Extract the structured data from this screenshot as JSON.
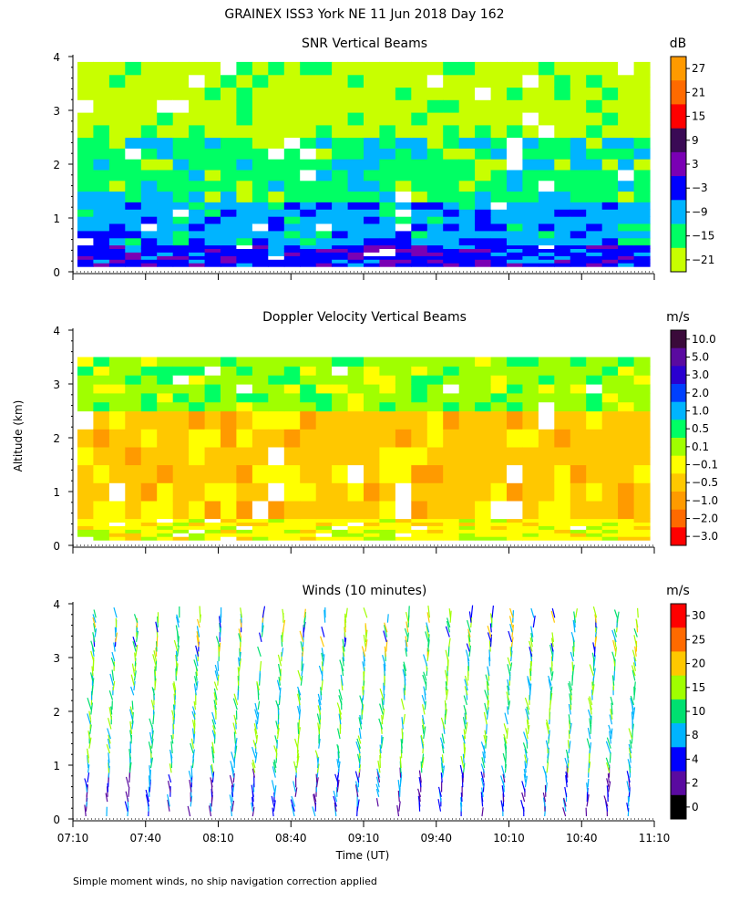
{
  "title": "GRAINEX ISS3 York NE  11 Jun 2018 Day 162",
  "ylabel": "Altitude (km)",
  "xlabel": "Time (UT)",
  "footnote": "Simple moment winds, no ship navigation correction applied",
  "chart_data": [
    {
      "type": "heatmap",
      "title": "SNR Vertical Beams",
      "unit": "dB",
      "x_ticks": [
        "07:10",
        "07:40",
        "08:10",
        "08:40",
        "09:10",
        "09:40",
        "10:10",
        "10:40",
        "11:10"
      ],
      "y_ticks": [
        "0",
        "1",
        "2",
        "3",
        "4"
      ],
      "ylim": [
        0,
        4
      ],
      "colorbar": {
        "labels": [
          "27",
          "21",
          "15",
          "9",
          "3",
          "−3",
          "−9",
          "−15",
          "−21"
        ],
        "colors": [
          "#ff9a00",
          "#ff6a00",
          "#ff0000",
          "#3a0a55",
          "#7a00b4",
          "#0000ff",
          "#00b4ff",
          "#00ff64",
          "#c8ff00"
        ]
      },
      "altitude_bands_km": [
        {
          "from": 0.1,
          "to": 0.5,
          "level": "-3"
        },
        {
          "from": 0.5,
          "to": 1.3,
          "level": "-9"
        },
        {
          "from": 1.3,
          "to": 2.5,
          "level": "-15"
        },
        {
          "from": 2.5,
          "to": 3.9,
          "level": "-21"
        }
      ]
    },
    {
      "type": "heatmap",
      "title": "Doppler Velocity Vertical Beams",
      "unit": "m/s",
      "x_ticks": [
        "07:10",
        "07:40",
        "08:10",
        "08:40",
        "09:10",
        "09:40",
        "10:10",
        "10:40",
        "11:10"
      ],
      "y_ticks": [
        "0",
        "1",
        "2",
        "3",
        "4"
      ],
      "ylim": [
        0,
        4
      ],
      "colorbar": {
        "labels": [
          "10.0",
          "5.0",
          "3.0",
          "2.0",
          "1.0",
          "0.5",
          "0.1",
          "−0.1",
          "−0.5",
          "−1.0",
          "−2.0",
          "−3.0"
        ],
        "colors": [
          "#3a0a3a",
          "#5a0aa0",
          "#2a00d0",
          "#0040ff",
          "#00b4ff",
          "#00ff64",
          "#a0ff00",
          "#ffff00",
          "#ffc800",
          "#ff9a00",
          "#ff6a00",
          "#ff0000"
        ]
      },
      "altitude_bands_km": [
        {
          "from": 0.1,
          "to": 0.5,
          "level": "-0.1"
        },
        {
          "from": 0.5,
          "to": 2.5,
          "level": "-0.5"
        },
        {
          "from": 2.5,
          "to": 3.5,
          "level": "0.1"
        }
      ]
    },
    {
      "type": "barbs",
      "title": "Winds (10 minutes)",
      "unit": "m/s",
      "x_ticks": [
        "07:10",
        "07:40",
        "08:10",
        "08:40",
        "09:10",
        "09:40",
        "10:10",
        "10:40",
        "11:10"
      ],
      "y_ticks": [
        "0",
        "1",
        "2",
        "3",
        "4"
      ],
      "ylim": [
        0,
        4
      ],
      "colorbar": {
        "labels": [
          "30",
          "25",
          "20",
          "15",
          "10",
          "8",
          "4",
          "2",
          "0"
        ],
        "colors": [
          "#ff0000",
          "#ff6a00",
          "#ffc800",
          "#a0ff00",
          "#00e070",
          "#00b4ff",
          "#0000ff",
          "#5a0aa0",
          "#000000"
        ]
      }
    }
  ]
}
